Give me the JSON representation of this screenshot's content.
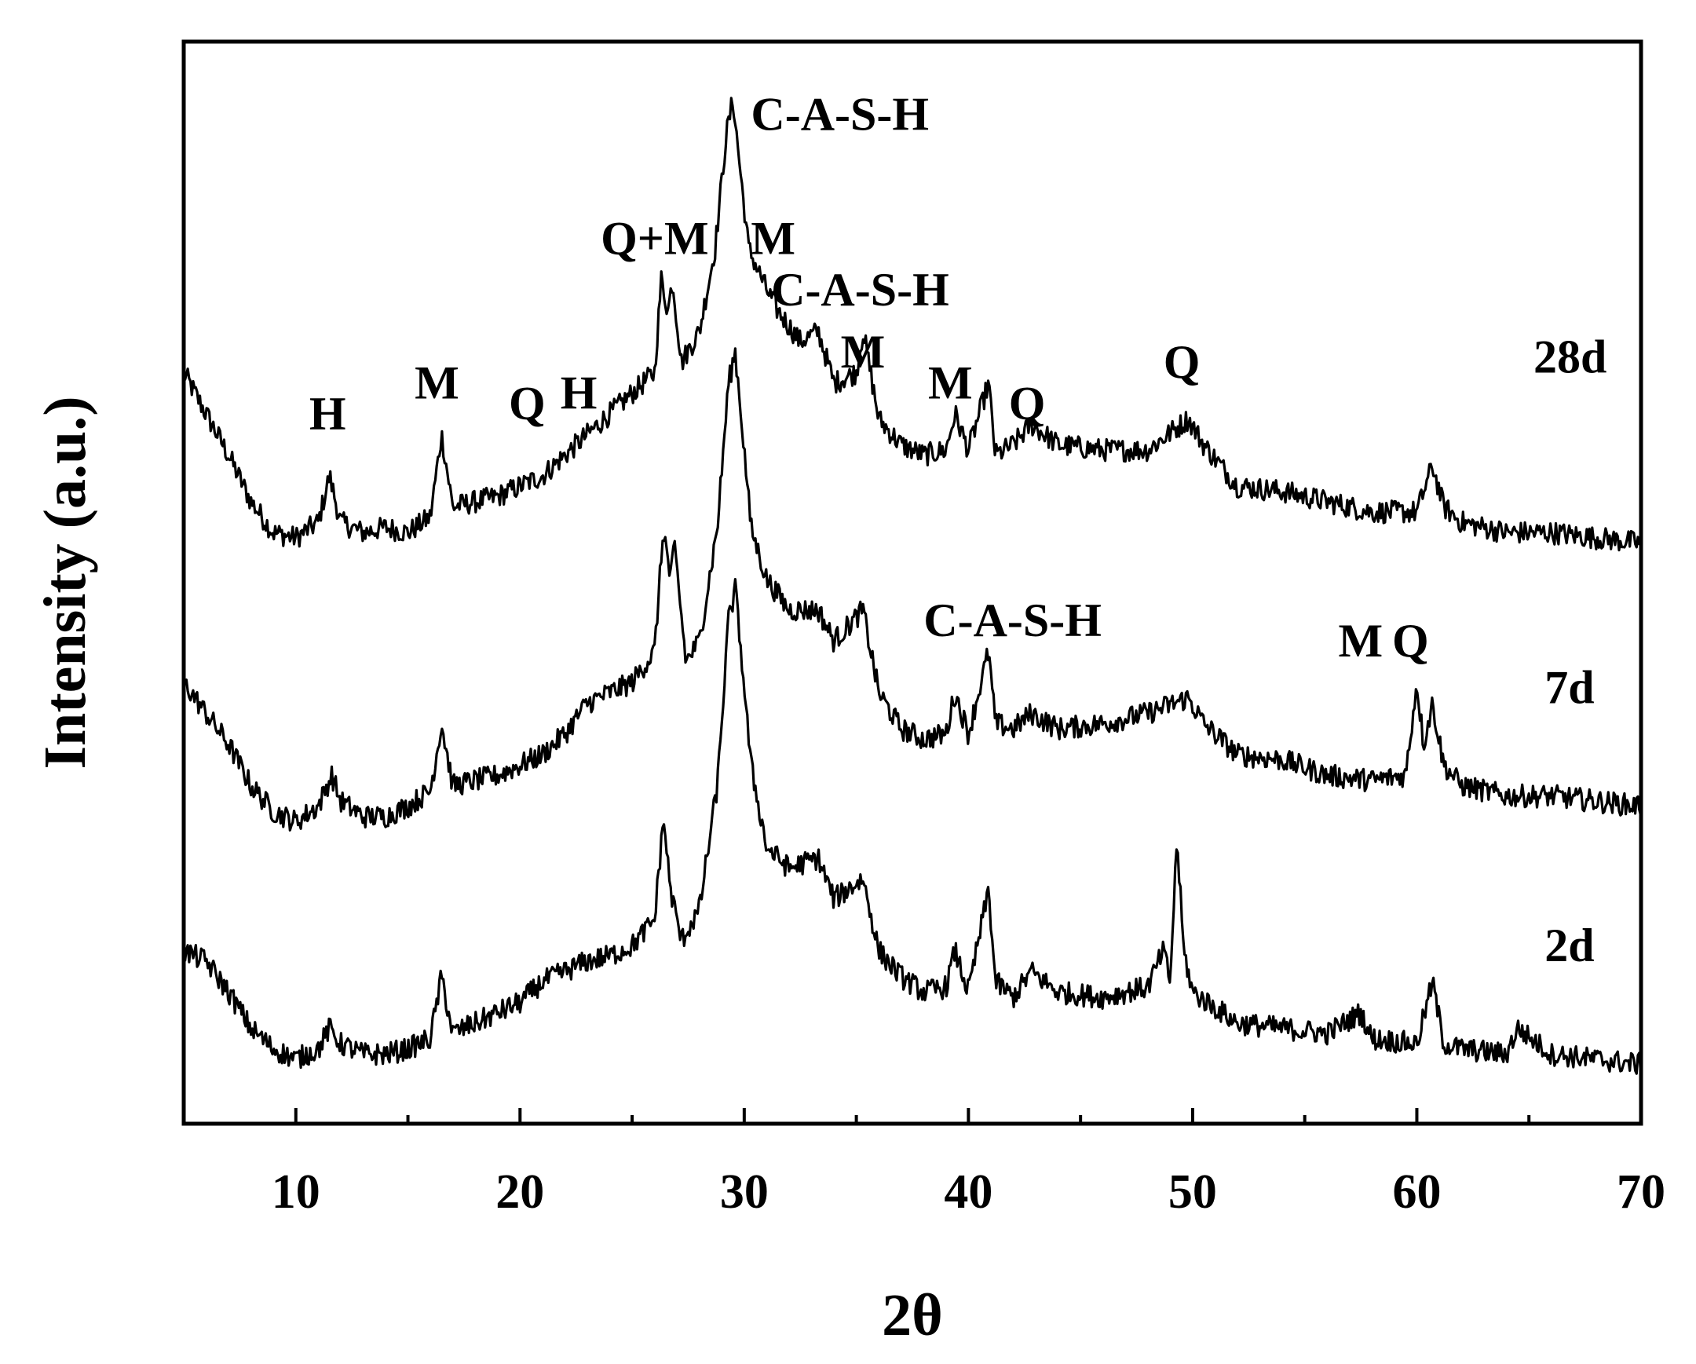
{
  "chart_data": {
    "type": "line",
    "title": "",
    "xlabel": "2θ",
    "ylabel": "Intensity (a.u.)",
    "xlim": [
      5,
      70
    ],
    "xticks": [
      10,
      20,
      30,
      40,
      50,
      60,
      70
    ],
    "minor_xticks": [
      5,
      15,
      25,
      35,
      45,
      55,
      65
    ],
    "yticks": [],
    "ylim": [
      0,
      1
    ],
    "grid": false,
    "series": [
      {
        "name": "28d",
        "points": [
          [
            5,
            0.7
          ],
          [
            6,
            0.66
          ],
          [
            7,
            0.62
          ],
          [
            8,
            0.575
          ],
          [
            9,
            0.545
          ],
          [
            10,
            0.54
          ],
          [
            11,
            0.555
          ],
          [
            11.5,
            0.6
          ],
          [
            12,
            0.555
          ],
          [
            13,
            0.545
          ],
          [
            14,
            0.55
          ],
          [
            15,
            0.545
          ],
          [
            16,
            0.56
          ],
          [
            16.5,
            0.64
          ],
          [
            17,
            0.57
          ],
          [
            18,
            0.575
          ],
          [
            19,
            0.58
          ],
          [
            20,
            0.59
          ],
          [
            21,
            0.6
          ],
          [
            22,
            0.62
          ],
          [
            23,
            0.64
          ],
          [
            24,
            0.66
          ],
          [
            25,
            0.68
          ],
          [
            26,
            0.7
          ],
          [
            26.3,
            0.79
          ],
          [
            26.6,
            0.76
          ],
          [
            26.8,
            0.79
          ],
          [
            27.2,
            0.71
          ],
          [
            28,
            0.74
          ],
          [
            28.7,
            0.82
          ],
          [
            29.2,
            0.93
          ],
          [
            29.5,
            0.965
          ],
          [
            29.8,
            0.9
          ],
          [
            30.2,
            0.82
          ],
          [
            31,
            0.78
          ],
          [
            31.5,
            0.76
          ],
          [
            32.5,
            0.73
          ],
          [
            33.3,
            0.74
          ],
          [
            34,
            0.69
          ],
          [
            35,
            0.7
          ],
          [
            35.3,
            0.74
          ],
          [
            36,
            0.655
          ],
          [
            37,
            0.63
          ],
          [
            38,
            0.62
          ],
          [
            39,
            0.625
          ],
          [
            39.4,
            0.66
          ],
          [
            40,
            0.625
          ],
          [
            40.9,
            0.69
          ],
          [
            41.2,
            0.62
          ],
          [
            42,
            0.63
          ],
          [
            42.8,
            0.65
          ],
          [
            44,
            0.63
          ],
          [
            46,
            0.625
          ],
          [
            48,
            0.625
          ],
          [
            49.8,
            0.655
          ],
          [
            50.5,
            0.63
          ],
          [
            52,
            0.59
          ],
          [
            54,
            0.585
          ],
          [
            56,
            0.575
          ],
          [
            58,
            0.565
          ],
          [
            60,
            0.565
          ],
          [
            60.7,
            0.61
          ],
          [
            61.2,
            0.57
          ],
          [
            62,
            0.555
          ],
          [
            64,
            0.545
          ],
          [
            66,
            0.545
          ],
          [
            68,
            0.54
          ],
          [
            70,
            0.535
          ]
        ]
      },
      {
        "name": "7d",
        "points": [
          [
            5,
            0.4
          ],
          [
            6,
            0.37
          ],
          [
            7,
            0.34
          ],
          [
            8,
            0.3
          ],
          [
            9,
            0.275
          ],
          [
            10,
            0.265
          ],
          [
            11,
            0.28
          ],
          [
            11.6,
            0.31
          ],
          [
            12,
            0.285
          ],
          [
            13,
            0.27
          ],
          [
            14,
            0.27
          ],
          [
            15,
            0.28
          ],
          [
            16,
            0.295
          ],
          [
            16.5,
            0.36
          ],
          [
            17,
            0.3
          ],
          [
            18,
            0.305
          ],
          [
            19,
            0.31
          ],
          [
            20,
            0.32
          ],
          [
            21,
            0.33
          ],
          [
            22,
            0.35
          ],
          [
            23,
            0.38
          ],
          [
            24,
            0.39
          ],
          [
            25,
            0.4
          ],
          [
            26,
            0.43
          ],
          [
            26.4,
            0.55
          ],
          [
            26.7,
            0.5
          ],
          [
            26.9,
            0.53
          ],
          [
            27.4,
            0.42
          ],
          [
            28,
            0.44
          ],
          [
            28.8,
            0.55
          ],
          [
            29.3,
            0.69
          ],
          [
            29.6,
            0.72
          ],
          [
            29.9,
            0.65
          ],
          [
            30.3,
            0.55
          ],
          [
            31,
            0.5
          ],
          [
            32,
            0.47
          ],
          [
            33.3,
            0.47
          ],
          [
            34,
            0.44
          ],
          [
            35.3,
            0.47
          ],
          [
            36,
            0.39
          ],
          [
            37,
            0.355
          ],
          [
            38,
            0.345
          ],
          [
            39,
            0.35
          ],
          [
            39.4,
            0.39
          ],
          [
            40,
            0.35
          ],
          [
            40.9,
            0.43
          ],
          [
            41.2,
            0.36
          ],
          [
            42,
            0.355
          ],
          [
            42.8,
            0.37
          ],
          [
            44,
            0.355
          ],
          [
            46,
            0.36
          ],
          [
            48,
            0.37
          ],
          [
            49.8,
            0.385
          ],
          [
            50.5,
            0.36
          ],
          [
            52,
            0.33
          ],
          [
            54,
            0.325
          ],
          [
            56,
            0.31
          ],
          [
            58,
            0.305
          ],
          [
            59.5,
            0.31
          ],
          [
            60,
            0.4
          ],
          [
            60.3,
            0.34
          ],
          [
            60.7,
            0.38
          ],
          [
            61.2,
            0.32
          ],
          [
            62,
            0.3
          ],
          [
            64,
            0.29
          ],
          [
            66,
            0.29
          ],
          [
            68,
            0.285
          ],
          [
            70,
            0.28
          ]
        ]
      },
      {
        "name": "2d",
        "points": [
          [
            5,
            0.14
          ],
          [
            6,
            0.13
          ],
          [
            7,
            0.1
          ],
          [
            8,
            0.065
          ],
          [
            9,
            0.045
          ],
          [
            10,
            0.035
          ],
          [
            11,
            0.045
          ],
          [
            11.5,
            0.065
          ],
          [
            12,
            0.05
          ],
          [
            13,
            0.04
          ],
          [
            14,
            0.04
          ],
          [
            15,
            0.045
          ],
          [
            16,
            0.055
          ],
          [
            16.5,
            0.115
          ],
          [
            17,
            0.06
          ],
          [
            18,
            0.07
          ],
          [
            19,
            0.08
          ],
          [
            20,
            0.09
          ],
          [
            21,
            0.11
          ],
          [
            22,
            0.12
          ],
          [
            23,
            0.13
          ],
          [
            24,
            0.135
          ],
          [
            25,
            0.145
          ],
          [
            26,
            0.17
          ],
          [
            26.4,
            0.27
          ],
          [
            26.7,
            0.2
          ],
          [
            27.2,
            0.15
          ],
          [
            28,
            0.18
          ],
          [
            28.8,
            0.3
          ],
          [
            29.3,
            0.46
          ],
          [
            29.6,
            0.49
          ],
          [
            29.9,
            0.42
          ],
          [
            30.3,
            0.32
          ],
          [
            31,
            0.24
          ],
          [
            32,
            0.22
          ],
          [
            33.3,
            0.23
          ],
          [
            34,
            0.19
          ],
          [
            35.3,
            0.21
          ],
          [
            36,
            0.14
          ],
          [
            37,
            0.115
          ],
          [
            38,
            0.1
          ],
          [
            39,
            0.105
          ],
          [
            39.4,
            0.14
          ],
          [
            40,
            0.1
          ],
          [
            40.9,
            0.2
          ],
          [
            41.2,
            0.11
          ],
          [
            42,
            0.095
          ],
          [
            42.8,
            0.12
          ],
          [
            44,
            0.1
          ],
          [
            46,
            0.095
          ],
          [
            48,
            0.105
          ],
          [
            48.7,
            0.14
          ],
          [
            49,
            0.11
          ],
          [
            49.3,
            0.25
          ],
          [
            49.6,
            0.14
          ],
          [
            50,
            0.1
          ],
          [
            52,
            0.07
          ],
          [
            54,
            0.065
          ],
          [
            56,
            0.06
          ],
          [
            57.5,
            0.08
          ],
          [
            58,
            0.055
          ],
          [
            60,
            0.05
          ],
          [
            60.7,
            0.11
          ],
          [
            61.2,
            0.05
          ],
          [
            62,
            0.045
          ],
          [
            64,
            0.04
          ],
          [
            64.5,
            0.065
          ],
          [
            66,
            0.04
          ],
          [
            68,
            0.035
          ],
          [
            70,
            0.03
          ]
        ]
      }
    ],
    "series_label_positions": [
      {
        "name": "28d",
        "x": 65.2,
        "y": 0.7
      },
      {
        "name": "7d",
        "x": 65.7,
        "y": 0.38
      },
      {
        "name": "2d",
        "x": 65.7,
        "y": 0.13
      }
    ],
    "annotations": [
      {
        "text": "C-A-S-H",
        "x": 30.3,
        "y": 0.935
      },
      {
        "text": "Q+M",
        "x": 23.6,
        "y": 0.815
      },
      {
        "text": "M",
        "x": 30.3,
        "y": 0.815
      },
      {
        "text": "C-A-S-H",
        "x": 31.2,
        "y": 0.765
      },
      {
        "text": "M",
        "x": 34.3,
        "y": 0.705
      },
      {
        "text": "H",
        "x": 10.6,
        "y": 0.645
      },
      {
        "text": "M",
        "x": 15.3,
        "y": 0.675
      },
      {
        "text": "Q",
        "x": 19.5,
        "y": 0.655
      },
      {
        "text": "H",
        "x": 21.8,
        "y": 0.665
      },
      {
        "text": "M",
        "x": 38.2,
        "y": 0.675
      },
      {
        "text": "Q",
        "x": 41.8,
        "y": 0.655
      },
      {
        "text": "Q",
        "x": 48.7,
        "y": 0.695
      },
      {
        "text": "C-A-S-H",
        "x": 38.0,
        "y": 0.445
      },
      {
        "text": "M",
        "x": 56.5,
        "y": 0.425
      },
      {
        "text": "Q",
        "x": 58.9,
        "y": 0.425
      }
    ]
  }
}
